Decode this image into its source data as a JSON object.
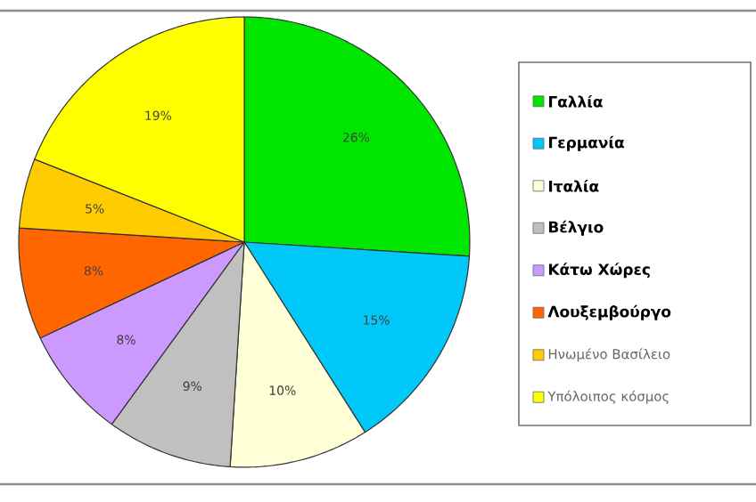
{
  "chart_data": {
    "type": "pie",
    "categories": [
      "Γαλλία",
      "Γερμανία",
      "Ιταλία",
      "Βέλγιο",
      "Κάτω Χώρες",
      "Λουξεμβούργο",
      "Ηνωμένο Βασίλειο",
      "Υπόλοιπος κόσμος"
    ],
    "values": [
      26,
      15,
      10,
      9,
      8,
      8,
      5,
      19
    ],
    "value_labels": [
      "26%",
      "15%",
      "10%",
      "9%",
      "8%",
      "8%",
      "5%",
      "19%"
    ],
    "colors": [
      "#00e600",
      "#00c8f8",
      "#ffffd8",
      "#c0c0c0",
      "#cc99ff",
      "#ff6600",
      "#ffcc00",
      "#ffff00"
    ],
    "legend": "right"
  }
}
